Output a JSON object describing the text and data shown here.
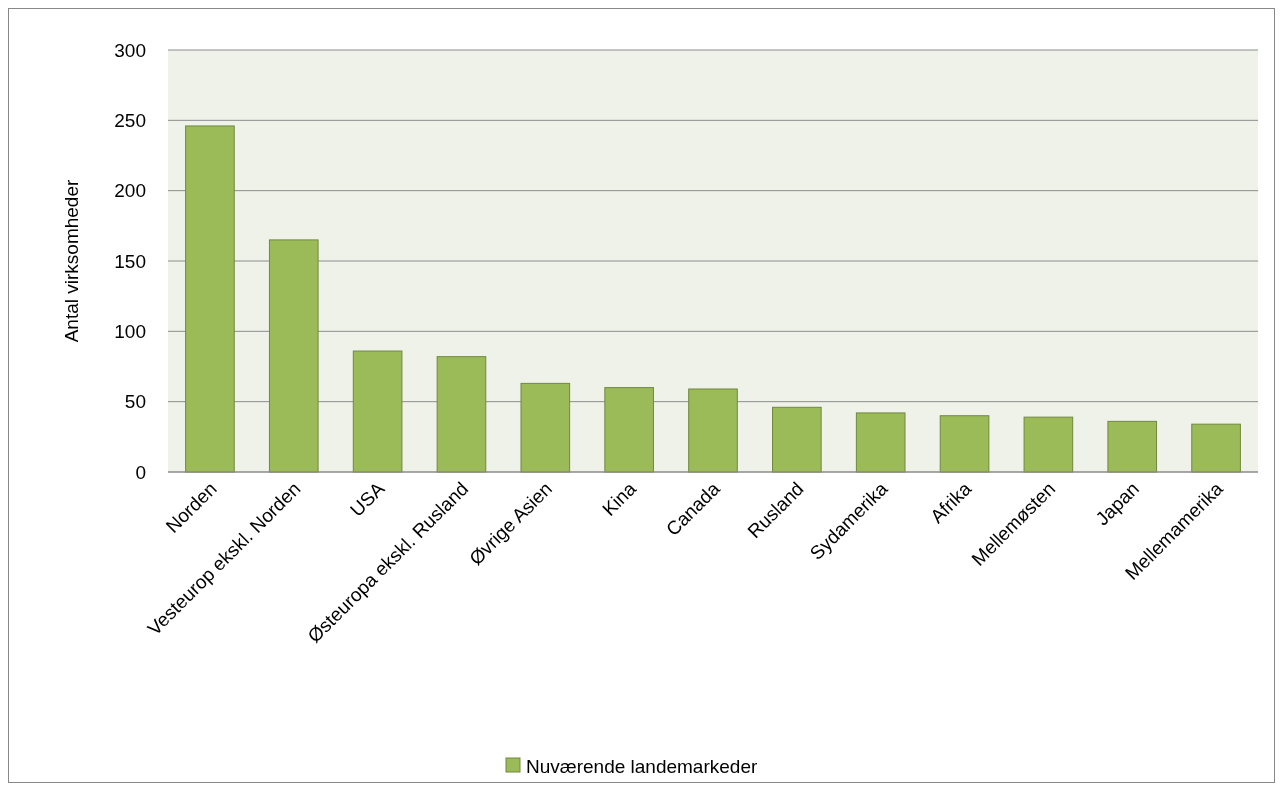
{
  "chart_data": {
    "type": "bar",
    "ylabel": "Antal virksomheder",
    "categories": [
      "Norden",
      "Vesteurop ekskl. Norden",
      "USA",
      "Østeuropa ekskl. Rusland",
      "Øvrige Asien",
      "Kina",
      "Canada",
      "Rusland",
      "Sydamerika",
      "Afrika",
      "Mellemøsten",
      "Japan",
      "Mellemamerika"
    ],
    "series": [
      {
        "name": "Nuværende landemarkeder",
        "color": "#9bbb59",
        "values": [
          246,
          165,
          86,
          82,
          63,
          60,
          59,
          46,
          42,
          40,
          39,
          36,
          34
        ]
      }
    ],
    "ylim": [
      0,
      300
    ],
    "yticks": [
      0,
      50,
      100,
      150,
      200,
      250,
      300
    ],
    "grid": "y",
    "legend": "bottom"
  }
}
